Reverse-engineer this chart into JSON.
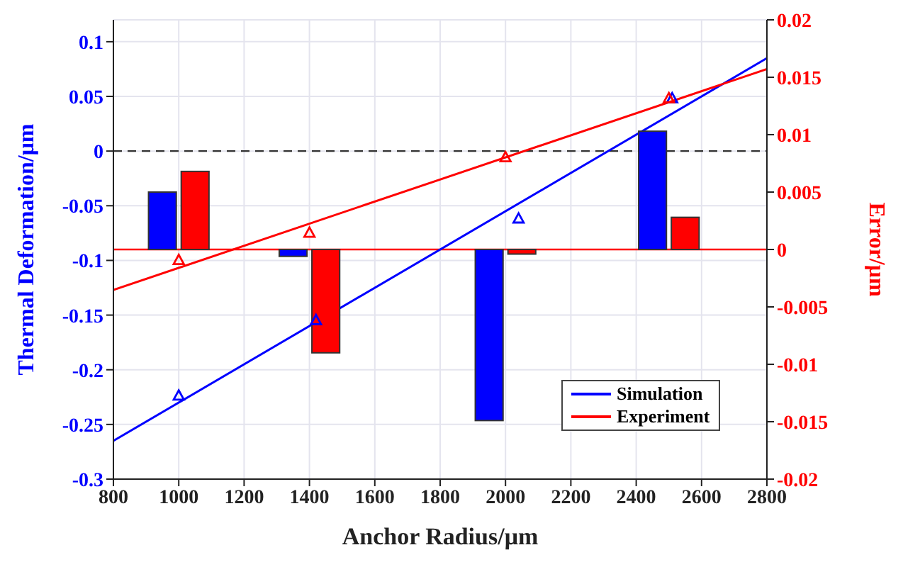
{
  "chart_data": {
    "type": "line",
    "xlabel": "Anchor Radius/μm",
    "ylabel": "Thermal Deformation/μm",
    "y2label": "Error/μm",
    "xlim": [
      800,
      2800
    ],
    "xticks": [
      800,
      1000,
      1200,
      1400,
      1600,
      1800,
      2000,
      2200,
      2400,
      2600,
      2800
    ],
    "ylim": [
      -0.3,
      0.12
    ],
    "yticks": [
      -0.3,
      -0.25,
      -0.2,
      -0.15,
      -0.1,
      -0.05,
      0,
      0.05,
      0.1
    ],
    "y2lim": [
      -0.02,
      0.02
    ],
    "y2ticks": [
      -0.02,
      -0.015,
      -0.01,
      -0.005,
      0,
      0.005,
      0.01,
      0.015,
      0.02
    ],
    "grid": true,
    "legend": "bottom right",
    "ref_lines": [
      {
        "axis": "y",
        "value": 0,
        "color": "#333333",
        "line_style": "dashed"
      },
      {
        "axis": "y2",
        "value": 0,
        "color": "#ff0000",
        "line_style": "solid"
      }
    ],
    "series": [
      {
        "type": "bar",
        "axis": "y2",
        "color": "#0000ff",
        "x": [
          950,
          1350,
          1950,
          2450
        ],
        "values": [
          0.005,
          -0.0006,
          -0.0149,
          0.0103
        ]
      },
      {
        "type": "bar",
        "axis": "y2",
        "color": "#ff0000",
        "x": [
          1050,
          1450,
          2050,
          2550
        ],
        "values": [
          0.0068,
          -0.009,
          -0.0004,
          0.0028
        ]
      },
      {
        "type": "scatter",
        "marker": "triangle",
        "color": "#0000ff",
        "x": [
          1000,
          1420,
          2040,
          2510
        ],
        "values": [
          -0.224,
          -0.155,
          -0.062,
          0.048
        ]
      },
      {
        "type": "scatter",
        "marker": "triangle",
        "color": "#ff0000",
        "x": [
          1000,
          1400,
          2000,
          2500
        ],
        "values": [
          -0.1,
          -0.075,
          -0.006,
          0.048
        ]
      },
      {
        "name": "Simulation",
        "color": "#0000ff",
        "x": [
          800,
          2800
        ],
        "values": [
          -0.265,
          0.085
        ]
      },
      {
        "name": "Experiment",
        "color": "#ff0000",
        "x": [
          800,
          2800
        ],
        "values": [
          -0.127,
          0.075
        ]
      }
    ]
  }
}
